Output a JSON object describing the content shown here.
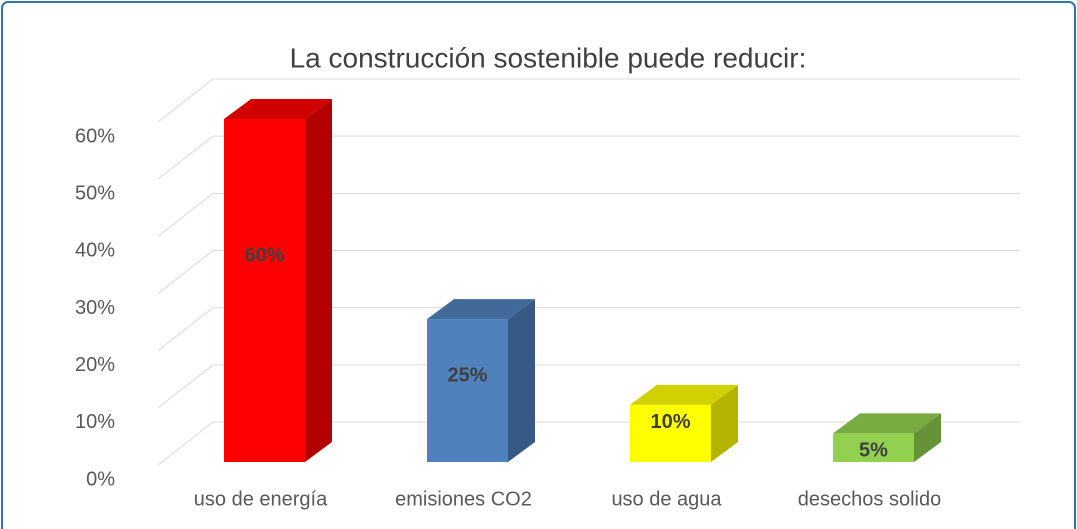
{
  "chart_data": {
    "type": "bar3d",
    "title": "La construcción sostenible puede reducir:",
    "categories": [
      "uso de energía",
      "emisiones CO2",
      "uso de agua",
      "desechos solido"
    ],
    "values": [
      60,
      25,
      10,
      5
    ],
    "value_labels": [
      "60%",
      "25%",
      "10%",
      "5%"
    ],
    "colors": [
      "#ff0000",
      "#4f81bd",
      "#ffff00",
      "#92d050"
    ],
    "ylim": [
      0,
      60
    ],
    "yticks": [
      {
        "value": 0,
        "label": "0%"
      },
      {
        "value": 10,
        "label": "10%"
      },
      {
        "value": 20,
        "label": "20%"
      },
      {
        "value": 30,
        "label": "30%"
      },
      {
        "value": 40,
        "label": "40%"
      },
      {
        "value": 50,
        "label": "50%"
      },
      {
        "value": 60,
        "label": "60%"
      }
    ],
    "grid": true
  }
}
